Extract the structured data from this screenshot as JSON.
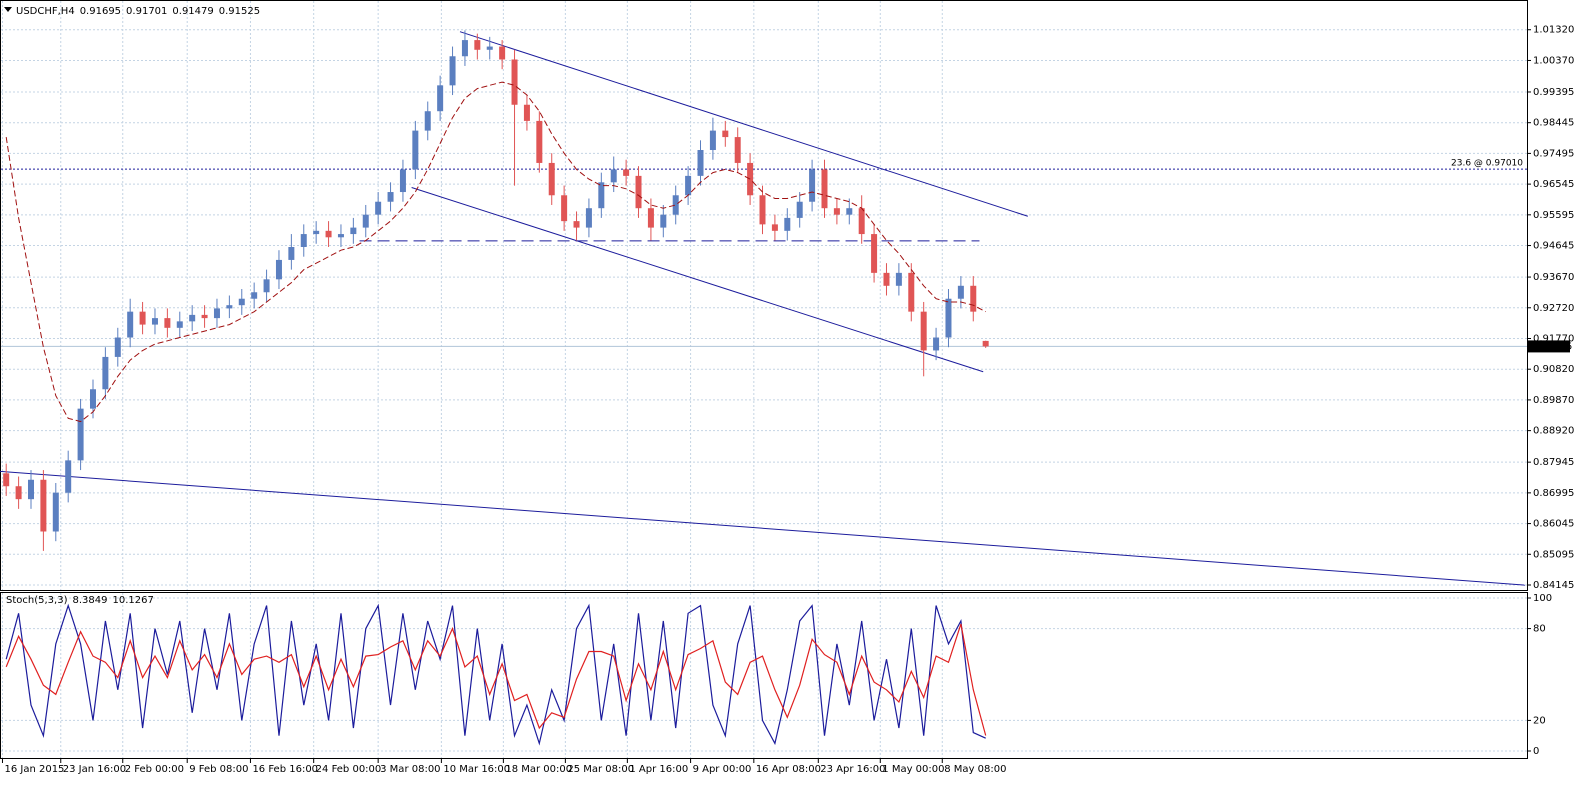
{
  "chart_data": [
    {
      "type": "candlestick",
      "title": "USDCHF,H4",
      "xlim": [
        -0.5,
        122.5
      ],
      "ylim": [
        0.84145,
        1.0224
      ],
      "grid": true,
      "up_color": "#5b7fc0",
      "down_color": "#e05555",
      "line_color": "#1c1c9c",
      "xticks": [
        {
          "value": -0.3,
          "label": "16 Jan 2015"
        },
        {
          "value": 4.4,
          "label": "23 Jan 16:00"
        },
        {
          "value": 9.4,
          "label": "2 Feb 00:00"
        },
        {
          "value": 14.6,
          "label": "9 Feb 08:00"
        },
        {
          "value": 19.7,
          "label": "16 Feb 16:00"
        },
        {
          "value": 24.8,
          "label": "24 Feb 00:00"
        },
        {
          "value": 30,
          "label": "3 Mar 08:00"
        },
        {
          "value": 35.1,
          "label": "10 Mar 16:00"
        },
        {
          "value": 40.1,
          "label": "18 Mar 00:00"
        },
        {
          "value": 45.1,
          "label": "25 Mar 08:00"
        },
        {
          "value": 50.1,
          "label": "1 Apr 16:00"
        },
        {
          "value": 55.2,
          "label": "9 Apr 00:00"
        },
        {
          "value": 60.3,
          "label": "16 Apr 08:00"
        },
        {
          "value": 65.5,
          "label": "23 Apr 16:00"
        },
        {
          "value": 70.5,
          "label": "1 May 00:00"
        },
        {
          "value": 75.5,
          "label": "8 May 08:00"
        }
      ],
      "yticks": [
        {
          "value": 1.0132,
          "label": "1.01320"
        },
        {
          "value": 1.0037,
          "label": "1.00370"
        },
        0.99395,
        0.98445,
        0.97495,
        0.96545,
        0.95595,
        0.94645,
        {
          "value": 0.9367,
          "label": "0.93670"
        },
        {
          "value": 0.9272,
          "label": "0.92720"
        },
        {
          "value": 0.9177,
          "label": "0.91770"
        },
        {
          "value": 0.9082,
          "label": "0.90820"
        },
        {
          "value": 0.8987,
          "label": "0.89870"
        },
        {
          "value": 0.8892,
          "label": "0.88920"
        },
        0.87945,
        0.86995,
        0.86045,
        0.85095,
        0.84145
      ],
      "open": [
        0.876,
        0.872,
        0.868,
        0.874,
        0.858,
        0.87,
        0.88,
        0.896,
        0.902,
        0.912,
        0.918,
        0.926,
        0.922,
        0.924,
        0.921,
        0.923,
        0.925,
        0.924,
        0.927,
        0.928,
        0.93,
        0.932,
        0.936,
        0.942,
        0.946,
        0.95,
        0.951,
        0.949,
        0.95,
        0.952,
        0.956,
        0.96,
        0.963,
        0.97,
        0.982,
        0.988,
        0.996,
        1.005,
        1.01,
        1.007,
        1.008,
        1.004,
        0.99,
        0.985,
        0.972,
        0.962,
        0.954,
        0.952,
        0.958,
        0.966,
        0.97,
        0.968,
        0.958,
        0.952,
        0.956,
        0.962,
        0.968,
        0.976,
        0.982,
        0.98,
        0.972,
        0.962,
        0.953,
        0.951,
        0.955,
        0.96,
        0.97,
        0.958,
        0.956,
        0.958,
        0.95,
        0.938,
        0.934,
        0.938,
        0.926,
        0.914,
        0.918,
        0.93,
        0.934,
        0.91695
      ],
      "high": [
        0.879,
        0.875,
        0.877,
        0.877,
        0.873,
        0.883,
        0.899,
        0.905,
        0.915,
        0.921,
        0.93,
        0.929,
        0.927,
        0.927,
        0.926,
        0.928,
        0.928,
        0.93,
        0.931,
        0.933,
        0.935,
        0.939,
        0.945,
        0.95,
        0.953,
        0.954,
        0.954,
        0.953,
        0.955,
        0.959,
        0.963,
        0.966,
        0.973,
        0.985,
        0.991,
        0.999,
        1.008,
        1.013,
        1.012,
        1.011,
        1.01,
        1.007,
        0.993,
        0.988,
        0.975,
        0.965,
        0.957,
        0.961,
        0.969,
        0.974,
        0.973,
        0.971,
        0.961,
        0.959,
        0.965,
        0.971,
        0.979,
        0.986,
        0.985,
        0.983,
        0.975,
        0.965,
        0.956,
        0.958,
        0.963,
        0.973,
        0.973,
        0.961,
        0.961,
        0.962,
        0.953,
        0.941,
        0.941,
        0.941,
        0.929,
        0.921,
        0.933,
        0.937,
        0.937,
        0.91701
      ],
      "low": [
        0.869,
        0.865,
        0.865,
        0.852,
        0.855,
        0.867,
        0.877,
        0.893,
        0.899,
        0.909,
        0.915,
        0.919,
        0.919,
        0.918,
        0.918,
        0.92,
        0.921,
        0.921,
        0.924,
        0.925,
        0.927,
        0.929,
        0.933,
        0.939,
        0.943,
        0.947,
        0.946,
        0.946,
        0.947,
        0.949,
        0.953,
        0.957,
        0.96,
        0.967,
        0.979,
        0.985,
        0.993,
        1.002,
        1.004,
        1.004,
        1.001,
        0.965,
        0.982,
        0.969,
        0.959,
        0.951,
        0.948,
        0.949,
        0.955,
        0.963,
        0.965,
        0.955,
        0.948,
        0.949,
        0.953,
        0.959,
        0.965,
        0.973,
        0.977,
        0.969,
        0.959,
        0.95,
        0.948,
        0.948,
        0.952,
        0.957,
        0.955,
        0.953,
        0.953,
        0.947,
        0.935,
        0.931,
        0.931,
        0.923,
        0.906,
        0.911,
        0.915,
        0.927,
        0.923,
        0.91479
      ],
      "close": [
        0.872,
        0.868,
        0.874,
        0.858,
        0.87,
        0.88,
        0.896,
        0.902,
        0.912,
        0.918,
        0.926,
        0.922,
        0.924,
        0.921,
        0.923,
        0.925,
        0.924,
        0.927,
        0.928,
        0.93,
        0.932,
        0.936,
        0.942,
        0.946,
        0.95,
        0.951,
        0.949,
        0.95,
        0.952,
        0.956,
        0.96,
        0.963,
        0.97,
        0.982,
        0.988,
        0.996,
        1.005,
        1.01,
        1.007,
        1.008,
        1.004,
        0.99,
        0.985,
        0.972,
        0.962,
        0.954,
        0.952,
        0.958,
        0.966,
        0.97,
        0.968,
        0.958,
        0.952,
        0.956,
        0.962,
        0.968,
        0.976,
        0.982,
        0.98,
        0.972,
        0.962,
        0.953,
        0.951,
        0.955,
        0.96,
        0.97,
        0.958,
        0.956,
        0.958,
        0.95,
        0.938,
        0.934,
        0.938,
        0.926,
        0.914,
        0.918,
        0.93,
        0.934,
        0.926,
        0.91525
      ],
      "ma": {
        "color": "#a01010",
        "values": [
          0.98,
          0.955,
          0.935,
          0.915,
          0.9,
          0.893,
          0.892,
          0.895,
          0.9,
          0.906,
          0.911,
          0.914,
          0.916,
          0.917,
          0.918,
          0.919,
          0.92,
          0.921,
          0.922,
          0.924,
          0.926,
          0.929,
          0.932,
          0.935,
          0.939,
          0.941,
          0.943,
          0.945,
          0.946,
          0.948,
          0.951,
          0.954,
          0.958,
          0.963,
          0.97,
          0.978,
          0.986,
          0.992,
          0.995,
          0.996,
          0.997,
          0.996,
          0.993,
          0.988,
          0.981,
          0.975,
          0.97,
          0.967,
          0.965,
          0.965,
          0.964,
          0.962,
          0.959,
          0.958,
          0.959,
          0.962,
          0.966,
          0.969,
          0.97,
          0.969,
          0.967,
          0.963,
          0.961,
          0.961,
          0.962,
          0.963,
          0.962,
          0.961,
          0.96,
          0.958,
          0.953,
          0.948,
          0.944,
          0.939,
          0.934,
          0.93,
          0.929,
          0.929,
          0.928,
          0.926
        ]
      },
      "trendlines": [
        {
          "x": [
            36.6,
            82.4
          ],
          "y": [
            1.0126,
            0.9555
          ]
        },
        {
          "x": [
            32.7,
            78.8
          ],
          "y": [
            0.9644,
            0.9074
          ]
        },
        {
          "x": [
            -0.5,
            122.5
          ],
          "y": [
            0.8766,
            0.8414
          ]
        }
      ],
      "hline": {
        "x": [
          28.5,
          78.5
        ],
        "y": 0.9479
      },
      "fib": {
        "value": 0.9701,
        "label": "23.6 @ 0.97010"
      }
    },
    {
      "type": "line",
      "title": "Stoch(5,3,3)",
      "xlim": [
        -0.5,
        122.5
      ],
      "ylim": [
        0,
        100
      ],
      "yticks": [
        0,
        20,
        80,
        100
      ],
      "series": [
        {
          "color": "#1c1c9c",
          "values": [
            60,
            90,
            30,
            10,
            70,
            95,
            70,
            20,
            85,
            40,
            90,
            15,
            80,
            50,
            85,
            25,
            80,
            40,
            90,
            20,
            70,
            95,
            10,
            85,
            30,
            70,
            20,
            90,
            15,
            80,
            95,
            30,
            90,
            40,
            85,
            60,
            95,
            10,
            80,
            20,
            70,
            10,
            30,
            5,
            40,
            20,
            80,
            95,
            20,
            70,
            10,
            90,
            20,
            85,
            15,
            90,
            95,
            30,
            10,
            70,
            95,
            20,
            5,
            40,
            85,
            95,
            10,
            70,
            30,
            85,
            20,
            60,
            15,
            80,
            10,
            95,
            70,
            85,
            12,
            8.3849
          ]
        },
        {
          "color": "#e02020",
          "values": [
            55,
            75,
            60,
            43,
            37,
            58,
            78,
            62,
            58,
            48,
            72,
            48,
            62,
            48,
            72,
            53,
            63,
            48,
            70,
            50,
            60,
            62,
            58,
            63,
            42,
            62,
            40,
            60,
            42,
            62,
            63,
            68,
            72,
            53,
            72,
            62,
            80,
            55,
            62,
            37,
            57,
            33,
            37,
            15,
            25,
            22,
            47,
            65,
            65,
            62,
            33,
            57,
            40,
            65,
            40,
            63,
            67,
            72,
            45,
            37,
            58,
            62,
            40,
            22,
            43,
            73,
            63,
            58,
            37,
            62,
            45,
            40,
            32,
            52,
            35,
            62,
            58,
            83,
            40,
            10.1267
          ]
        }
      ]
    }
  ]
}
